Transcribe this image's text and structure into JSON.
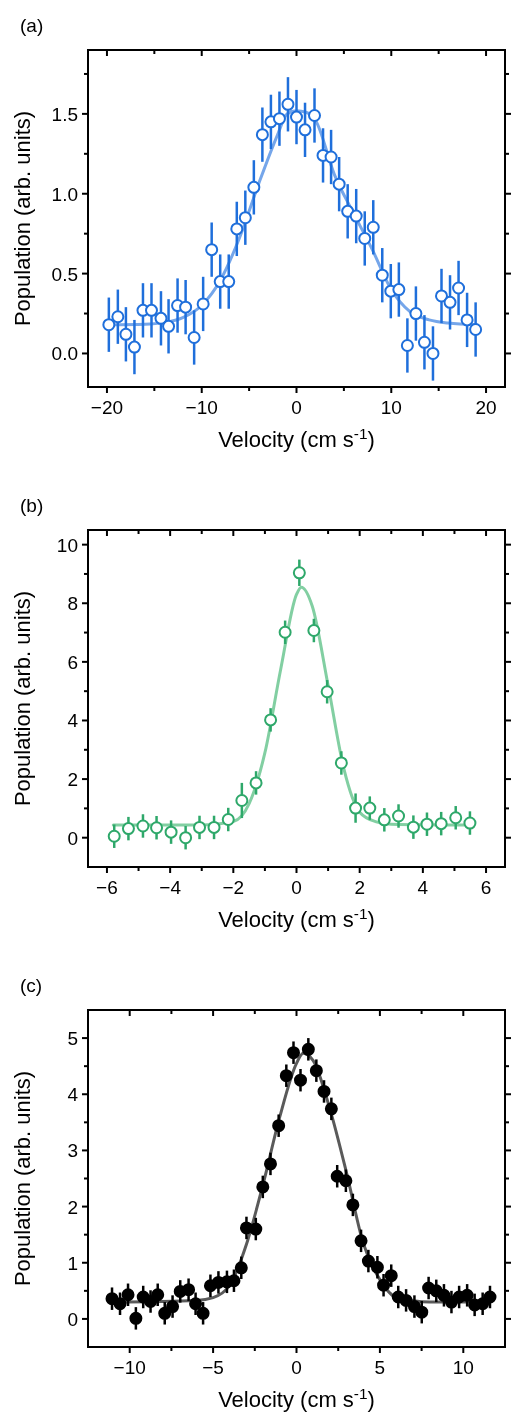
{
  "chart_data": [
    {
      "type": "scatter",
      "title": "(a)",
      "xlabel": "Velocity (cm s$^{-1}$)",
      "ylabel": "Population (arb. units)",
      "xlim": [
        -22,
        22
      ],
      "ylim": [
        -0.21,
        1.9
      ],
      "xticks": [
        {
          "value": -20,
          "label": "−20"
        },
        {
          "value": -15,
          "label": null
        },
        {
          "value": -10,
          "label": "−10"
        },
        {
          "value": -5,
          "label": null
        },
        0,
        {
          "value": 5,
          "label": null
        },
        10,
        {
          "value": 15,
          "label": null
        },
        20
      ],
      "yticks": [
        {
          "value": 0,
          "label": "0.0"
        },
        {
          "value": 0.25,
          "label": null
        },
        {
          "value": 0.5,
          "label": "0.5"
        },
        {
          "value": 0.75,
          "label": null
        },
        {
          "value": 1,
          "label": "1.0"
        },
        {
          "value": 1.25,
          "label": null
        },
        {
          "value": 1.5,
          "label": "1.5"
        },
        {
          "value": 1.75,
          "label": null
        }
      ],
      "series": [
        {
          "type": "line",
          "color": "#75a6ea",
          "x": [
            -20,
            -16,
            -14,
            -12,
            -10,
            -8,
            -6,
            -4,
            -2,
            -1,
            0,
            1,
            2,
            4,
            6,
            8,
            10,
            12,
            14,
            16,
            19
          ],
          "values": [
            0.18,
            0.183,
            0.193,
            0.224,
            0.302,
            0.462,
            0.726,
            1.061,
            1.369,
            1.5,
            1.52,
            1.51,
            1.46,
            1.12,
            0.88,
            0.65,
            0.4,
            0.26,
            0.21,
            0.19,
            0.18
          ]
        },
        {
          "marker": "circle",
          "color": "#1f6fdb",
          "x": [
            -19.8,
            -18.85,
            -18,
            -17.1,
            -16.2,
            -15.3,
            -14.3,
            -13.5,
            -12.55,
            -11.7,
            -10.8,
            -9.85,
            -8.95,
            -8.05,
            -7.15,
            -6.3,
            -5.4,
            -4.5,
            -3.6,
            -2.7,
            -1.8,
            -0.9,
            0,
            0.9,
            1.9,
            2.8,
            3.65,
            4.5,
            5.4,
            6.3,
            7.2,
            8.1,
            9.05,
            9.95,
            10.8,
            11.7,
            12.6,
            13.5,
            14.4,
            15.3,
            16.2,
            17.1,
            18,
            18.9
          ],
          "values": [
            0.18,
            0.23,
            0.12,
            0.04,
            0.27,
            0.27,
            0.22,
            0.17,
            0.3,
            0.29,
            0.1,
            0.31,
            0.65,
            0.45,
            0.45,
            0.78,
            0.85,
            1.04,
            1.37,
            1.45,
            1.47,
            1.56,
            1.48,
            1.4,
            1.49,
            1.24,
            1.23,
            1.06,
            0.89,
            0.86,
            0.72,
            0.79,
            0.49,
            0.39,
            0.4,
            0.05,
            0.25,
            0.07,
            0,
            0.36,
            0.32,
            0.41,
            0.21,
            0.15
          ],
          "errors": [
            0.17,
            0.17,
            0.17,
            0.17,
            0.17,
            0.17,
            0.17,
            0.17,
            0.17,
            0.17,
            0.17,
            0.17,
            0.17,
            0.17,
            0.17,
            0.17,
            0.17,
            0.17,
            0.17,
            0.17,
            0.17,
            0.17,
            0.17,
            0.17,
            0.17,
            0.17,
            0.17,
            0.17,
            0.17,
            0.17,
            0.17,
            0.17,
            0.17,
            0.17,
            0.17,
            0.17,
            0.17,
            0.17,
            0.17,
            0.17,
            0.17,
            0.17,
            0.17,
            0.17
          ]
        }
      ]
    },
    {
      "type": "scatter",
      "title": "(b)",
      "xlabel": "Velocity (cm s$^{-1}$)",
      "ylabel": "Population (arb. units)",
      "xlim": [
        -6.6,
        6.6
      ],
      "ylim": [
        -1,
        10.5
      ],
      "xticks": [
        {
          "value": -6,
          "label": "−6"
        },
        {
          "value": -5,
          "label": null
        },
        {
          "value": -4,
          "label": "−4"
        },
        {
          "value": -3,
          "label": null
        },
        {
          "value": -2,
          "label": "−2"
        },
        {
          "value": -1,
          "label": null
        },
        0,
        {
          "value": 1,
          "label": null
        },
        2,
        {
          "value": 3,
          "label": null
        },
        4,
        {
          "value": 5,
          "label": null
        },
        6
      ],
      "yticks": [
        0,
        {
          "value": 1,
          "label": null
        },
        2,
        {
          "value": 3,
          "label": null
        },
        4,
        {
          "value": 5,
          "label": null
        },
        6,
        {
          "value": 7,
          "label": null
        },
        8,
        {
          "value": 9,
          "label": null
        },
        10
      ],
      "series": [
        {
          "type": "line",
          "color": "#82cfa2",
          "x": [
            -5.8,
            -3,
            -2,
            -1.5,
            -1,
            -0.5,
            0,
            0.15,
            0.5,
            1,
            1.5,
            2,
            2.5,
            3,
            5.6
          ],
          "values": [
            0.43,
            0.43,
            0.55,
            1.16,
            2.9,
            5.75,
            8.3,
            8.55,
            7.9,
            5.2,
            2.35,
            0.87,
            0.55,
            0.46,
            0.43
          ]
        },
        {
          "marker": "circle",
          "color": "#2ea86a",
          "x": [
            -5.77,
            -5.32,
            -4.86,
            -4.43,
            -3.97,
            -3.51,
            -3.07,
            -2.61,
            -2.16,
            -1.73,
            -1.28,
            -0.82,
            -0.36,
            0.09,
            0.55,
            0.97,
            1.42,
            1.87,
            2.32,
            2.78,
            3.23,
            3.7,
            4.13,
            4.58,
            5.04,
            5.49
          ],
          "values": [
            0.05,
            0.31,
            0.4,
            0.34,
            0.19,
            0,
            0.35,
            0.35,
            0.62,
            1.27,
            1.87,
            4.02,
            7.01,
            9.04,
            7.07,
            4.98,
            2.55,
            1.01,
            1.01,
            0.61,
            0.74,
            0.36,
            0.46,
            0.48,
            0.68,
            0.5
          ],
          "errors": [
            0.4,
            0.4,
            0.4,
            0.4,
            0.4,
            0.4,
            0.4,
            0.4,
            0.4,
            0.6,
            0.4,
            0.4,
            0.4,
            0.45,
            0.4,
            0.4,
            0.4,
            0.5,
            0.4,
            0.4,
            0.4,
            0.4,
            0.4,
            0.4,
            0.4,
            0.4
          ]
        }
      ]
    },
    {
      "type": "scatter",
      "title": "(c)",
      "xlabel": "Velocity (cm s$^{-1}$)",
      "ylabel": "Population (arb. units)",
      "xlim": [
        -12.5,
        12.5
      ],
      "ylim": [
        -0.5,
        5.5
      ],
      "xticks": [
        {
          "value": -10,
          "label": "−10"
        },
        {
          "value": -7.5,
          "label": null
        },
        {
          "value": -5,
          "label": "−5"
        },
        {
          "value": -2.5,
          "label": null
        },
        0,
        {
          "value": 2.5,
          "label": null
        },
        5,
        {
          "value": 7.5,
          "label": null
        },
        10
      ],
      "yticks": [
        0,
        {
          "value": 0.5,
          "label": null
        },
        1,
        {
          "value": 1.5,
          "label": null
        },
        2,
        {
          "value": 2.5,
          "label": null
        },
        3,
        {
          "value": 3.5,
          "label": null
        },
        4,
        {
          "value": 4.5,
          "label": null
        },
        5
      ],
      "series": [
        {
          "type": "line",
          "color": "#5a5a5a",
          "x": [
            -11,
            -6,
            -5,
            -4,
            -3,
            -2,
            -1,
            0,
            0.4,
            1,
            2,
            3,
            4,
            5,
            6,
            8,
            11.5
          ],
          "values": [
            0.3,
            0.33,
            0.38,
            0.6,
            1.33,
            2.4,
            3.6,
            4.55,
            4.73,
            4.6,
            3.74,
            2.6,
            1.35,
            0.7,
            0.38,
            0.3,
            0.3
          ]
        },
        {
          "marker": "circle",
          "color": "#000000",
          "x": [
            -11.06,
            -10.58,
            -10.1,
            -9.63,
            -9.19,
            -8.75,
            -8.32,
            -7.9,
            -7.43,
            -6.97,
            -6.47,
            -6.05,
            -5.6,
            -5.16,
            -4.68,
            -4.17,
            -3.75,
            -3.31,
            -3,
            -2.44,
            -2.02,
            -1.56,
            -1.07,
            -0.61,
            -0.18,
            0.24,
            0.71,
            1.19,
            1.65,
            2.09,
            2.44,
            2.96,
            3.38,
            3.87,
            4.31,
            4.85,
            5.22,
            5.68,
            6.1,
            6.57,
            7.07,
            7.51,
            7.92,
            8.38,
            8.84,
            9.29,
            9.75,
            10.23,
            10.68,
            11.16,
            11.6
          ],
          "values": [
            0.36,
            0.27,
            0.43,
            0.01,
            0.39,
            0.31,
            0.43,
            0.1,
            0.22,
            0.49,
            0.52,
            0.27,
            0.1,
            0.59,
            0.65,
            0.66,
            0.68,
            0.91,
            1.62,
            1.6,
            2.35,
            2.76,
            3.44,
            4.33,
            4.74,
            4.25,
            4.8,
            4.42,
            4.05,
            3.74,
            2.54,
            2.46,
            2.03,
            1.39,
            1.03,
            0.92,
            0.6,
            0.77,
            0.39,
            0.33,
            0.22,
            0.12,
            0.55,
            0.5,
            0.42,
            0.3,
            0.39,
            0.42,
            0.25,
            0.27,
            0.39
          ],
          "errors": [
            0.2,
            0.2,
            0.2,
            0.2,
            0.2,
            0.2,
            0.2,
            0.2,
            0.2,
            0.2,
            0.2,
            0.2,
            0.2,
            0.2,
            0.2,
            0.2,
            0.2,
            0.2,
            0.2,
            0.2,
            0.2,
            0.2,
            0.2,
            0.2,
            0.2,
            0.2,
            0.2,
            0.2,
            0.2,
            0.2,
            0.2,
            0.2,
            0.2,
            0.2,
            0.2,
            0.2,
            0.2,
            0.2,
            0.2,
            0.2,
            0.2,
            0.2,
            0.2,
            0.2,
            0.2,
            0.2,
            0.2,
            0.2,
            0.2,
            0.2,
            0.2
          ]
        }
      ]
    }
  ]
}
